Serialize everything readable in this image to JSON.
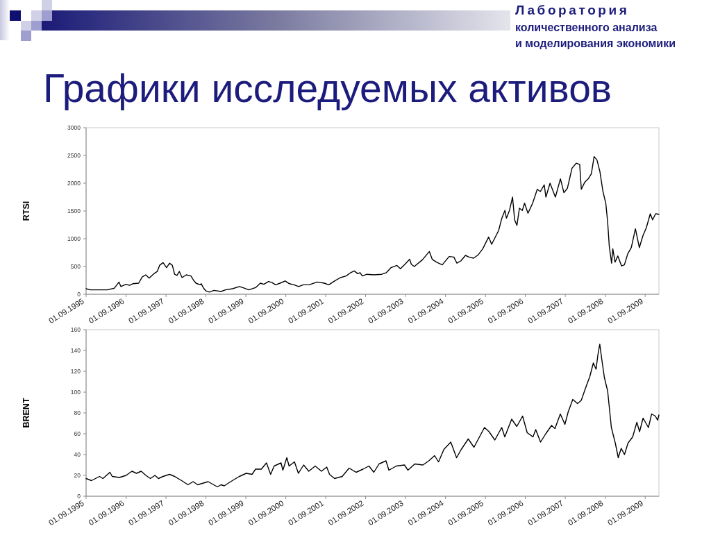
{
  "chart_data": [
    {
      "type": "line",
      "title": "Графики исследуемых активов",
      "annotations": [
        "Лаборатория\nколичественного анализа\nи моделирования экономики"
      ],
      "ylabel": "RTSI",
      "color": "#000000",
      "x": [
        "1995-09-01",
        "1995-10-07",
        "1996-01-10",
        "1996-03-14",
        "1996-05-17",
        "1996-06-28",
        "1996-07-15",
        "1996-08-31",
        "1996-10-02",
        "1996-11-02",
        "1996-12-25",
        "1997-01-26",
        "1997-02-27",
        "1997-03-31",
        "1997-05-13",
        "1997-06-13",
        "1997-07-04",
        "1997-08-05",
        "1997-09-06",
        "1997-10-04",
        "1997-10-29",
        "1997-11-19",
        "1997-12-10",
        "1998-01-01",
        "1998-01-26",
        "1998-03-05",
        "1998-04-17",
        "1998-05-12",
        "1998-06-02",
        "1998-07-10",
        "1998-07-20",
        "1998-08-11",
        "1998-09-01",
        "1998-10-03",
        "1998-11-14",
        "1999-01-17",
        "1999-02-28",
        "1999-05-03",
        "1999-07-05",
        "1999-08-17",
        "1999-09-28",
        "1999-11-30",
        "2000-01-12",
        "2000-02-13",
        "2000-03-27",
        "2000-04-28",
        "2000-05-30",
        "2000-07-11",
        "2000-08-26",
        "2000-10-03",
        "2000-11-15",
        "2000-12-27",
        "2001-02-08",
        "2001-04-02",
        "2001-06-15",
        "2001-08-18",
        "2001-09-29",
        "2001-11-21",
        "2002-01-13",
        "2002-03-07",
        "2002-04-18",
        "2002-05-20",
        "2002-06-21",
        "2002-07-12",
        "2002-08-02",
        "2002-09-13",
        "2002-11-15",
        "2003-01-27",
        "2003-03-10",
        "2003-04-22",
        "2003-06-14",
        "2003-07-16",
        "2003-08-27",
        "2003-10-09",
        "2003-10-24",
        "2003-11-20",
        "2004-02-02",
        "2004-04-06",
        "2004-05-02",
        "2004-06-09",
        "2004-08-02",
        "2004-10-04",
        "2004-11-16",
        "2004-12-14",
        "2005-01-19",
        "2005-03-02",
        "2005-04-03",
        "2005-05-15",
        "2005-06-27",
        "2005-08-08",
        "2005-09-30",
        "2005-10-28",
        "2005-12-31",
        "2006-01-29",
        "2006-02-26",
        "2006-03-12",
        "2006-04-09",
        "2006-05-07",
        "2006-05-26",
        "2006-06-16",
        "2006-07-09",
        "2006-08-04",
        "2006-08-25",
        "2006-09-25",
        "2006-11-07",
        "2006-12-19",
        "2007-01-16",
        "2007-02-21",
        "2007-03-08",
        "2007-04-15",
        "2007-06-03",
        "2007-07-19",
        "2007-08-20",
        "2007-09-21",
        "2007-11-02",
        "2007-12-10",
        "2008-01-11",
        "2008-01-26",
        "2008-02-27",
        "2008-03-30",
        "2008-04-27",
        "2008-05-22",
        "2008-06-17",
        "2008-07-14",
        "2008-08-11",
        "2008-09-06",
        "2008-09-23",
        "2008-10-08",
        "2008-10-29",
        "2008-11-09",
        "2008-11-30",
        "2008-12-25",
        "2009-01-28",
        "2009-02-23",
        "2009-03-26",
        "2009-04-27",
        "2009-06-04",
        "2009-07-10",
        "2009-08-11",
        "2009-09-12",
        "2009-10-18",
        "2009-11-08",
        "2009-12-06",
        "2010-01-05"
      ],
      "values": [
        100,
        80,
        80,
        80,
        110,
        220,
        140,
        180,
        160,
        190,
        200,
        310,
        350,
        290,
        370,
        410,
        520,
        570,
        480,
        560,
        520,
        360,
        340,
        410,
        300,
        350,
        330,
        250,
        200,
        170,
        190,
        110,
        60,
        40,
        70,
        50,
        80,
        100,
        140,
        110,
        80,
        120,
        200,
        180,
        230,
        210,
        170,
        200,
        240,
        190,
        170,
        140,
        170,
        170,
        220,
        200,
        170,
        240,
        300,
        330,
        390,
        420,
        370,
        390,
        330,
        360,
        350,
        360,
        390,
        480,
        520,
        460,
        540,
        630,
        540,
        500,
        620,
        770,
        630,
        580,
        530,
        680,
        670,
        560,
        600,
        700,
        670,
        650,
        710,
        820,
        1030,
        900,
        1150,
        1370,
        1510,
        1370,
        1510,
        1750,
        1340,
        1240,
        1550,
        1510,
        1640,
        1460,
        1640,
        1890,
        1850,
        1970,
        1750,
        2000,
        1750,
        2080,
        1830,
        1910,
        2270,
        2360,
        2340,
        1890,
        2020,
        2080,
        2170,
        2480,
        2420,
        2210,
        1850,
        1640,
        1300,
        860,
        560,
        820,
        580,
        690,
        510,
        530,
        730,
        840,
        1180,
        840,
        1050,
        1200,
        1450,
        1340,
        1450,
        1440
      ],
      "xlim": [
        "1995-09-01",
        "2010-01-05"
      ],
      "xticks": [
        {
          "value": "1995-09-01",
          "label": "01.09.1995"
        },
        {
          "value": "1996-09-01",
          "label": "01.09.1996"
        },
        {
          "value": "1997-09-01",
          "label": "01.09.1997"
        },
        {
          "value": "1998-09-01",
          "label": "01.09.1998"
        },
        {
          "value": "1999-09-01",
          "label": "01.09.1999"
        },
        {
          "value": "2000-09-01",
          "label": "01.09.2000"
        },
        {
          "value": "2001-09-01",
          "label": "01.09.2001"
        },
        {
          "value": "2002-09-01",
          "label": "01.09.2002"
        },
        {
          "value": "2003-09-01",
          "label": "01.09.2003"
        },
        {
          "value": "2004-09-01",
          "label": "01.09.2004"
        },
        {
          "value": "2005-09-01",
          "label": "01.09.2005"
        },
        {
          "value": "2006-09-01",
          "label": "01.09.2006"
        },
        {
          "value": "2007-09-01",
          "label": "01.09.2007"
        },
        {
          "value": "2008-09-01",
          "label": "01.09.2008"
        },
        {
          "value": "2009-09-01",
          "label": "01.09.2009"
        }
      ],
      "ylim": [
        0,
        3000
      ],
      "yticks": [
        0,
        500,
        1000,
        1500,
        2000,
        2500,
        3000
      ]
    },
    {
      "type": "line",
      "ylabel": "BRENT",
      "color": "#000000",
      "x": [
        "1995-09-01",
        "1995-10-20",
        "1996-01-02",
        "1996-02-02",
        "1996-04-06",
        "1996-04-27",
        "1996-07-01",
        "1996-09-01",
        "1996-10-24",
        "1996-12-05",
        "1997-01-17",
        "1997-03-01",
        "1997-04-11",
        "1997-05-23",
        "1997-06-24",
        "1997-08-05",
        "1997-10-03",
        "1997-11-19",
        "1998-01-22",
        "1998-03-21",
        "1998-05-07",
        "1998-06-18",
        "1998-09-21",
        "1998-12-15",
        "1999-01-17",
        "1999-02-16",
        "1999-05-01",
        "1999-07-04",
        "1999-09-05",
        "1999-10-28",
        "1999-11-29",
        "2000-01-21",
        "2000-03-08",
        "2000-04-15",
        "2000-05-17",
        "2000-07-19",
        "2000-08-05",
        "2000-09-10",
        "2000-10-01",
        "2000-11-19",
        "2000-12-25",
        "2001-02-11",
        "2001-03-30",
        "2001-05-28",
        "2001-07-24",
        "2001-09-10",
        "2001-10-06",
        "2001-11-21",
        "2002-01-30",
        "2002-04-03",
        "2002-06-06",
        "2002-08-08",
        "2002-10-01",
        "2002-11-15",
        "2003-01-02",
        "2003-03-06",
        "2003-04-02",
        "2003-06-09",
        "2003-08-22",
        "2003-09-23",
        "2003-11-25",
        "2004-02-07",
        "2004-04-01",
        "2004-05-24",
        "2004-06-29",
        "2004-08-17",
        "2004-10-19",
        "2004-12-11",
        "2005-01-23",
        "2005-03-28",
        "2005-05-19",
        "2005-08-23",
        "2005-10-04",
        "2005-11-26",
        "2006-01-28",
        "2006-02-25",
        "2006-04-29",
        "2006-06-15",
        "2006-08-07",
        "2006-09-18",
        "2006-11-10",
        "2006-12-05",
        "2007-01-18",
        "2007-03-07",
        "2007-04-29",
        "2007-05-30",
        "2007-07-18",
        "2007-08-29",
        "2007-09-28",
        "2007-11-09",
        "2007-12-22",
        "2008-01-25",
        "2008-03-12",
        "2008-04-13",
        "2008-05-15",
        "2008-06-09",
        "2008-06-26",
        "2008-07-13",
        "2008-07-28",
        "2008-08-24",
        "2008-09-23",
        "2008-10-27",
        "2008-12-02",
        "2008-12-29",
        "2009-01-25",
        "2009-02-24",
        "2009-03-28",
        "2009-05-10",
        "2009-06-17",
        "2009-07-12",
        "2009-08-13",
        "2009-10-01",
        "2009-10-30",
        "2009-12-03",
        "2009-12-24",
        "2010-01-05"
      ],
      "values": [
        17,
        15,
        19,
        17,
        23,
        19,
        18,
        20,
        24,
        22,
        24,
        20,
        17,
        20,
        17,
        19,
        21,
        19,
        15,
        11,
        14,
        11,
        14,
        9,
        11,
        10,
        15,
        19,
        22,
        21,
        26,
        26,
        32,
        21,
        29,
        32,
        25,
        37,
        29,
        33,
        22,
        30,
        24,
        29,
        24,
        28,
        21,
        17,
        19,
        27,
        23,
        26,
        29,
        23,
        31,
        34,
        25,
        29,
        30,
        25,
        31,
        30,
        34,
        39,
        33,
        45,
        52,
        37,
        45,
        55,
        47,
        66,
        62,
        54,
        66,
        57,
        74,
        67,
        77,
        61,
        57,
        64,
        52,
        60,
        68,
        65,
        79,
        69,
        81,
        93,
        89,
        92,
        106,
        115,
        128,
        122,
        136,
        146,
        134,
        114,
        101,
        66,
        51,
        37,
        46,
        40,
        51,
        57,
        71,
        62,
        75,
        66,
        79,
        77,
        73,
        78
      ],
      "xlim": [
        "1995-09-01",
        "2010-01-05"
      ],
      "xticks": [
        {
          "value": "1995-09-01",
          "label": "01.09.1995"
        },
        {
          "value": "1996-09-01",
          "label": "01.09.1996"
        },
        {
          "value": "1997-09-01",
          "label": "01.09.1997"
        },
        {
          "value": "1998-09-01",
          "label": "01.09.1998"
        },
        {
          "value": "1999-09-01",
          "label": "01.09.1999"
        },
        {
          "value": "2000-09-01",
          "label": "01.09.2000"
        },
        {
          "value": "2001-09-01",
          "label": "01.09.2001"
        },
        {
          "value": "2002-09-01",
          "label": "01.09.2002"
        },
        {
          "value": "2003-09-01",
          "label": "01.09.2003"
        },
        {
          "value": "2004-09-01",
          "label": "01.09.2004"
        },
        {
          "value": "2005-09-01",
          "label": "01.09.2005"
        },
        {
          "value": "2006-09-01",
          "label": "01.09.2006"
        },
        {
          "value": "2007-09-01",
          "label": "01.09.2007"
        },
        {
          "value": "2008-09-01",
          "label": "01.09.2008"
        },
        {
          "value": "2009-09-01",
          "label": "01.09.2009"
        }
      ],
      "ylim": [
        0,
        160
      ],
      "yticks": [
        0,
        20,
        40,
        60,
        80,
        100,
        120,
        140,
        160
      ]
    }
  ]
}
